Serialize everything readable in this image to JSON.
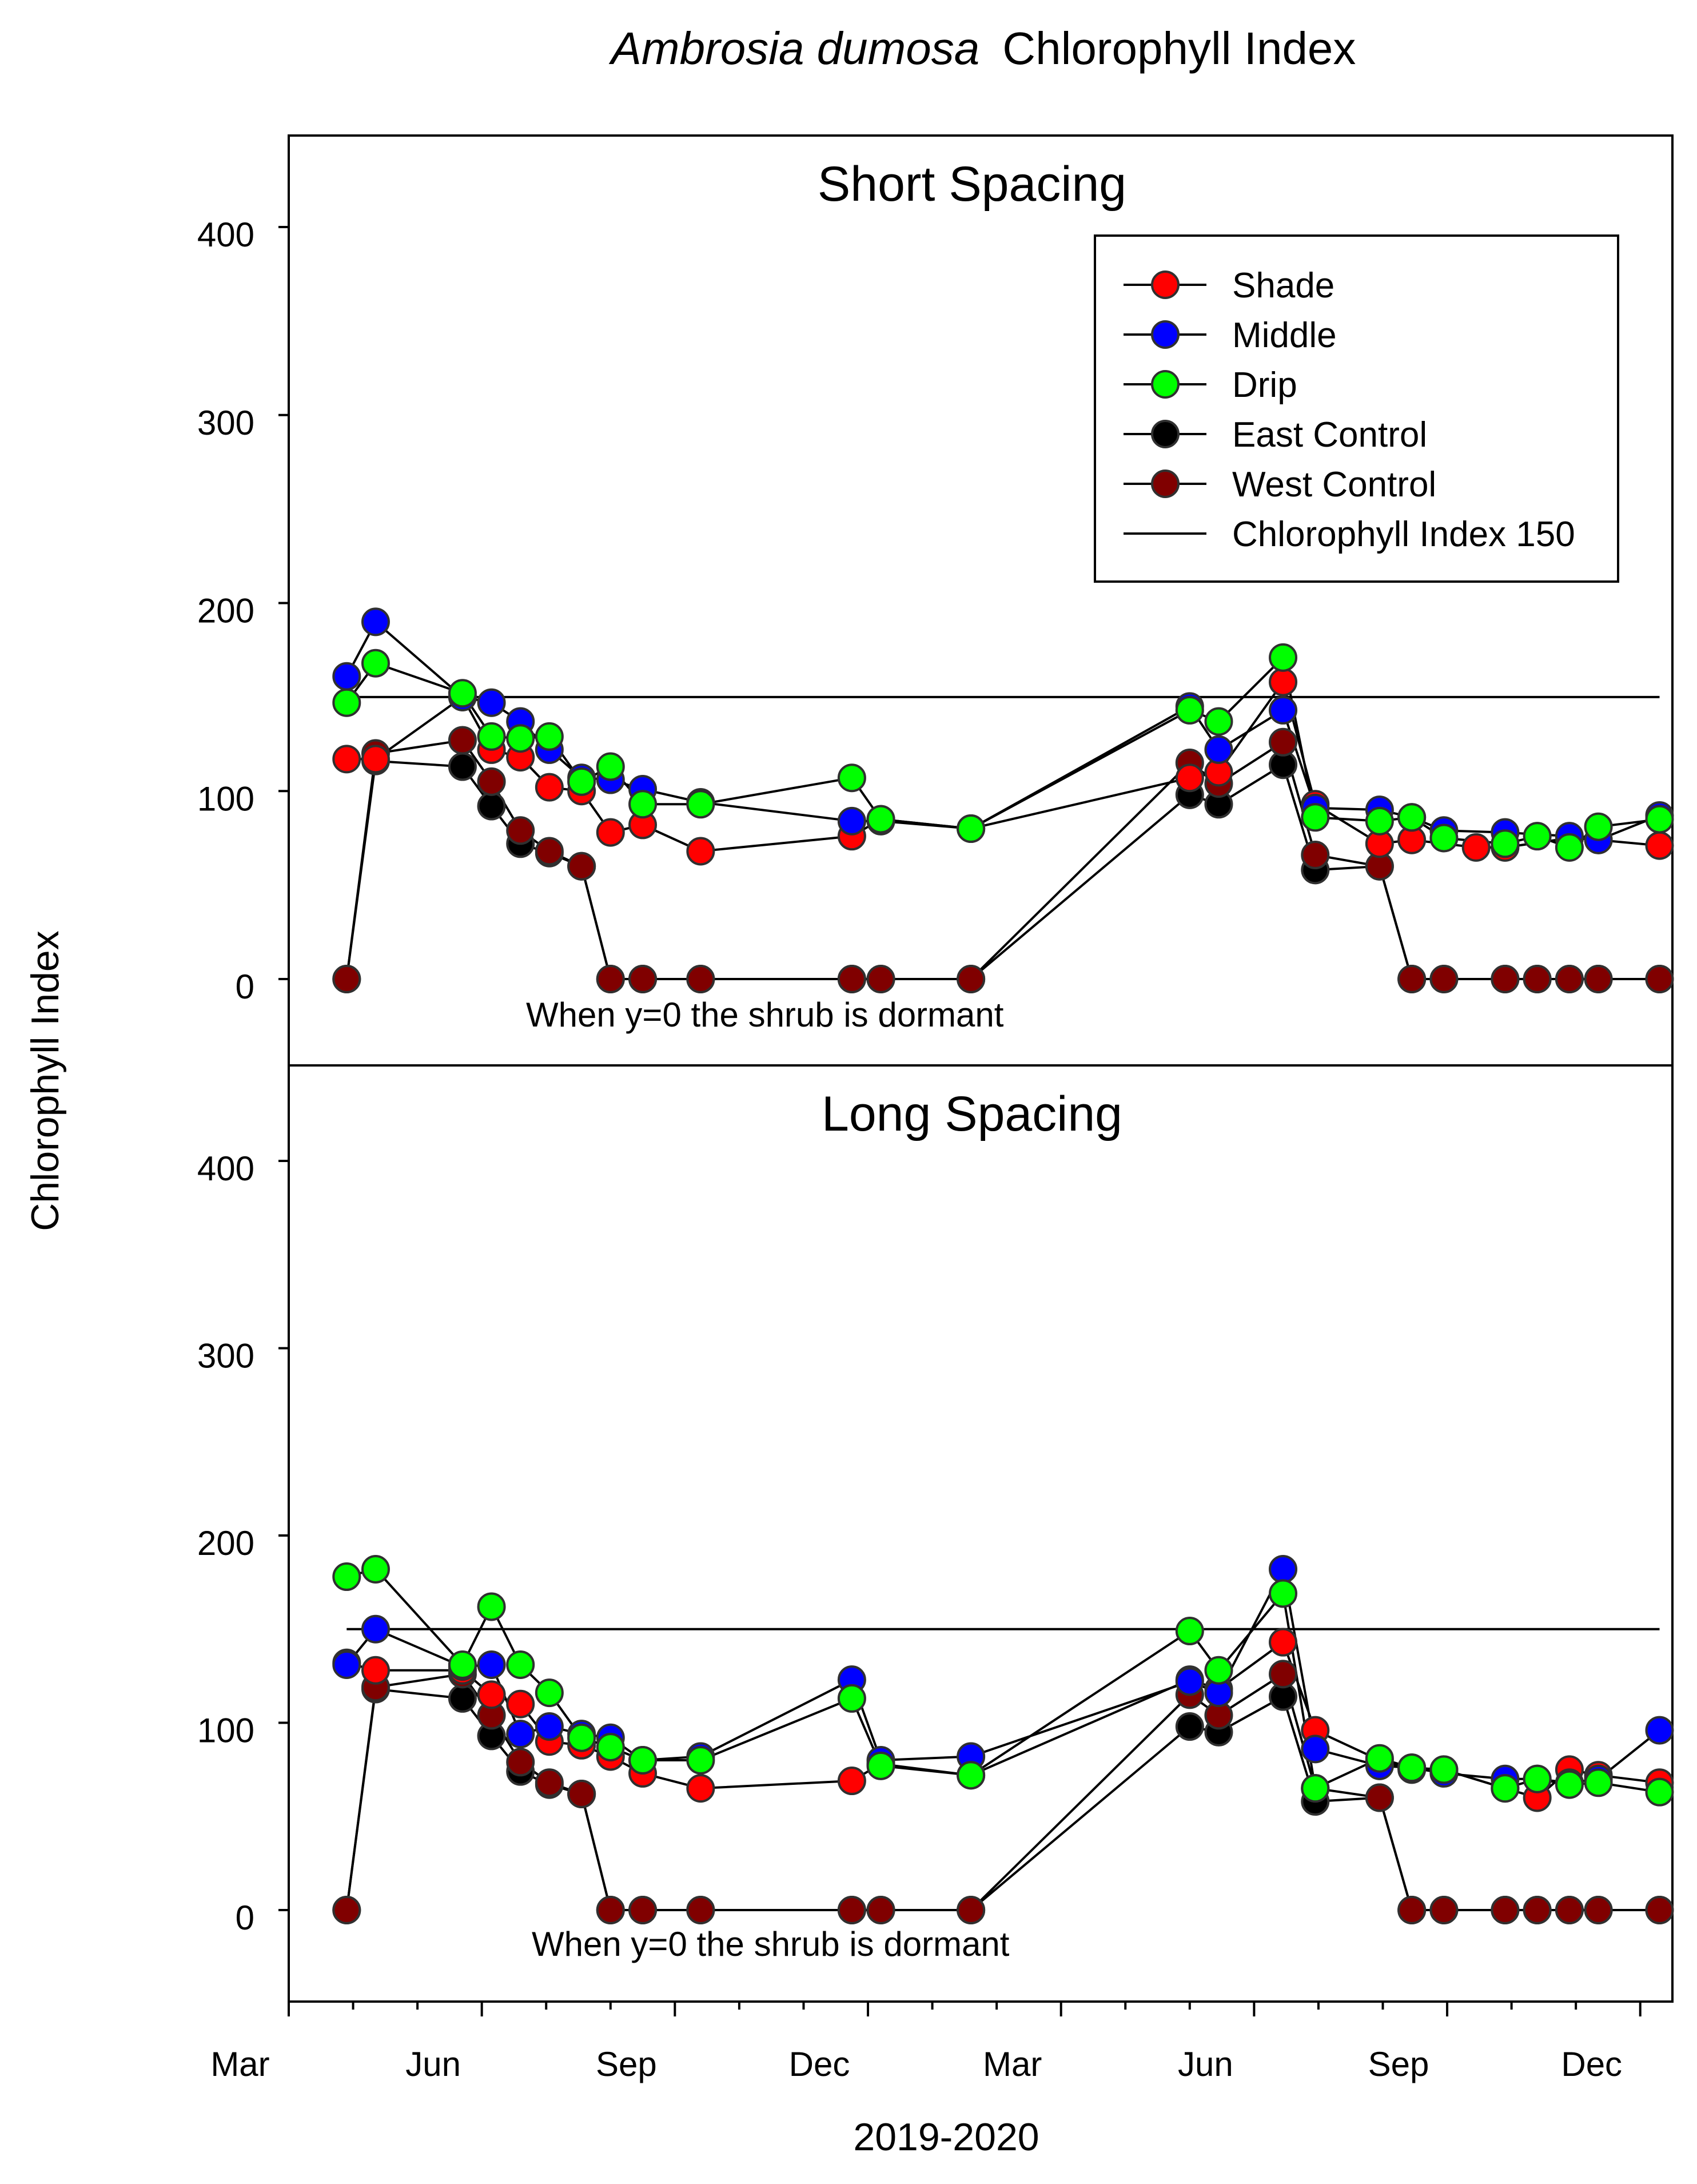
{
  "chart_data": {
    "type": "line",
    "title": "Chlorophyll Index",
    "title_species": "Ambrosia  dumosa",
    "xlabel": "2019-2020",
    "ylabel": "Chlorophyll Index",
    "month_tick_labels": [
      "Mar",
      "Jun",
      "Sep",
      "Dec",
      "Mar",
      "Jun",
      "Sep",
      "Dec"
    ],
    "x_unit": "months since 1 Mar 2019",
    "xlim": [
      0,
      21.5
    ],
    "ylim": [
      -45,
      445
    ],
    "ytick_labels": [
      "0",
      "100",
      "200",
      "300",
      "400"
    ],
    "reference_line": {
      "name": "Chlorophyll Index 150",
      "value": 150
    },
    "annotation": "When y=0 the shrub is dormant",
    "series_styles": [
      {
        "name": "Shade",
        "color": "#ff0000"
      },
      {
        "name": "Middle",
        "color": "#0000ff"
      },
      {
        "name": "Drip",
        "color": "#00ff00"
      },
      {
        "name": "East Control",
        "color": "#000000"
      },
      {
        "name": "West Control",
        "color": "#800000"
      }
    ],
    "legend": {
      "placement": "top-right",
      "entries": [
        "Shade",
        "Middle",
        "Drip",
        "East Control",
        "West Control",
        "Chlorophyll Index 150"
      ]
    },
    "panels": [
      {
        "title": "Short Spacing",
        "series": [
          {
            "name": "Shade",
            "x": [
              0.9,
              1.35,
              2.7,
              3.15,
              3.6,
              4.05,
              4.55,
              5.0,
              5.5,
              6.4,
              8.75,
              9.2,
              10.6,
              14.0,
              14.45,
              15.45,
              15.95,
              16.95,
              17.45,
              18.45,
              18.9,
              19.9,
              20.35,
              21.3
            ],
            "values": [
              117,
              117,
              150,
              122,
              118,
              102,
              100,
              78,
              82,
              68,
              76,
              85,
              80,
              107,
              110,
              158,
              93,
              72,
              74,
              70,
              70,
              75,
              74,
              71
            ]
          },
          {
            "name": "Middle",
            "x": [
              0.9,
              1.35,
              2.7,
              3.15,
              3.6,
              4.05,
              4.55,
              5.0,
              5.5,
              6.4,
              8.75,
              9.2,
              10.6,
              14.0,
              14.45,
              15.45,
              15.95,
              16.95,
              17.45,
              17.95,
              18.9,
              19.9,
              20.35,
              21.3
            ],
            "values": [
              161,
              190,
              150,
              147,
              137,
              122,
              107,
              106,
              101,
              94,
              84,
              84,
              80,
              145,
              122,
              143,
              91,
              90,
              86,
              79,
              78,
              76,
              74,
              87
            ]
          },
          {
            "name": "Drip",
            "x": [
              0.9,
              1.35,
              2.7,
              3.15,
              3.6,
              4.05,
              4.55,
              5.0,
              5.5,
              6.4,
              8.75,
              9.2,
              10.6,
              14.0,
              14.45,
              15.45,
              15.95,
              16.95,
              17.45,
              17.95,
              18.9,
              19.4,
              19.9,
              20.35,
              21.3
            ],
            "values": [
              147,
              168,
              152,
              129,
              128,
              129,
              105,
              113,
              93,
              93,
              107,
              85,
              80,
              143,
              137,
              171,
              86,
              84,
              86,
              75,
              72,
              76,
              70,
              81,
              85
            ]
          },
          {
            "name": "East Control",
            "x": [
              0.9,
              1.35,
              2.7,
              3.15,
              3.6,
              4.05,
              4.55,
              5.0,
              5.5,
              6.4,
              8.75,
              9.2,
              10.6,
              14.0,
              14.45,
              15.45,
              15.95,
              16.95,
              17.45,
              17.95,
              18.9,
              19.4,
              19.9,
              20.35,
              21.3
            ],
            "values": [
              0,
              116,
              113,
              92,
              72,
              67,
              60,
              0,
              0,
              0,
              0,
              0,
              0,
              98,
              93,
              114,
              58,
              60,
              0,
              0,
              0,
              0,
              0,
              0,
              0
            ]
          },
          {
            "name": "West Control",
            "x": [
              0.9,
              1.35,
              2.7,
              3.15,
              3.6,
              4.05,
              4.55,
              5.0,
              5.5,
              6.4,
              8.75,
              9.2,
              10.6,
              14.0,
              14.45,
              15.45,
              15.95,
              16.95,
              17.45,
              17.95,
              18.9,
              19.4,
              19.9,
              20.35,
              21.3
            ],
            "values": [
              0,
              120,
              127,
              105,
              79,
              68,
              60,
              0,
              0,
              0,
              0,
              0,
              0,
              115,
              104,
              126,
              66,
              60,
              0,
              0,
              0,
              0,
              0,
              0,
              0
            ]
          }
        ]
      },
      {
        "title": "Long Spacing",
        "series": [
          {
            "name": "Shade",
            "x": [
              0.9,
              1.35,
              2.7,
              3.15,
              3.6,
              4.05,
              4.55,
              5.0,
              5.5,
              6.4,
              8.75,
              9.2,
              10.6,
              14.0,
              14.45,
              15.45,
              15.95,
              16.95,
              17.45,
              17.95,
              18.9,
              19.4,
              19.9,
              20.35,
              21.3
            ],
            "values": [
              132,
              128,
              128,
              115,
              110,
              90,
              88,
              82,
              73,
              65,
              69,
              78,
              72,
              123,
              118,
              143,
              96,
              80,
              75,
              75,
              65,
              60,
              75,
              72,
              68
            ]
          },
          {
            "name": "Middle",
            "x": [
              0.9,
              1.35,
              2.7,
              3.15,
              3.6,
              4.05,
              4.55,
              5.0,
              5.5,
              6.4,
              8.75,
              9.2,
              10.6,
              14.0,
              14.45,
              15.45,
              15.95,
              16.95,
              17.45,
              17.95,
              18.9,
              19.4,
              19.9,
              20.35,
              21.3
            ],
            "values": [
              131,
              150,
              130,
              131,
              94,
              98,
              94,
              92,
              80,
              82,
              123,
              80,
              82,
              122,
              116,
              182,
              86,
              77,
              76,
              73,
              70,
              70,
              68,
              70,
              96
            ]
          },
          {
            "name": "Drip",
            "x": [
              0.9,
              1.35,
              2.7,
              3.15,
              3.6,
              4.05,
              4.55,
              5.0,
              5.5,
              6.4,
              8.75,
              9.2,
              10.6,
              14.0,
              14.45,
              15.45,
              15.95,
              16.95,
              17.45,
              17.95,
              18.9,
              19.4,
              19.9,
              20.35,
              21.3
            ],
            "values": [
              178,
              182,
              131,
              162,
              131,
              116,
              92,
              87,
              80,
              80,
              113,
              77,
              72,
              149,
              128,
              169,
              65,
              81,
              76,
              75,
              65,
              70,
              67,
              68,
              63
            ]
          },
          {
            "name": "East Control",
            "x": [
              0.9,
              1.35,
              2.7,
              3.15,
              3.6,
              4.05,
              4.55,
              5.0,
              5.5,
              6.4,
              8.75,
              9.2,
              10.6,
              14.0,
              14.45,
              15.45,
              15.95,
              16.95,
              17.45,
              17.95,
              18.9,
              19.4,
              19.9,
              20.35,
              21.3
            ],
            "values": [
              0,
              118,
              113,
              93,
              74,
              67,
              62,
              0,
              0,
              0,
              0,
              0,
              0,
              98,
              95,
              114,
              58,
              60,
              0,
              0,
              0,
              0,
              0,
              0,
              0
            ]
          },
          {
            "name": "West Control",
            "x": [
              0.9,
              1.35,
              2.7,
              3.15,
              3.6,
              4.05,
              4.55,
              5.0,
              5.5,
              6.4,
              8.75,
              9.2,
              10.6,
              14.0,
              14.45,
              15.45,
              15.95,
              16.95,
              17.45,
              17.95,
              18.9,
              19.4,
              19.9,
              20.35,
              21.3
            ],
            "values": [
              0,
              119,
              126,
              104,
              79,
              68,
              62,
              0,
              0,
              0,
              0,
              0,
              0,
              115,
              104,
              126,
              65,
              60,
              0,
              0,
              0,
              0,
              0,
              0,
              0
            ]
          }
        ]
      }
    ]
  }
}
